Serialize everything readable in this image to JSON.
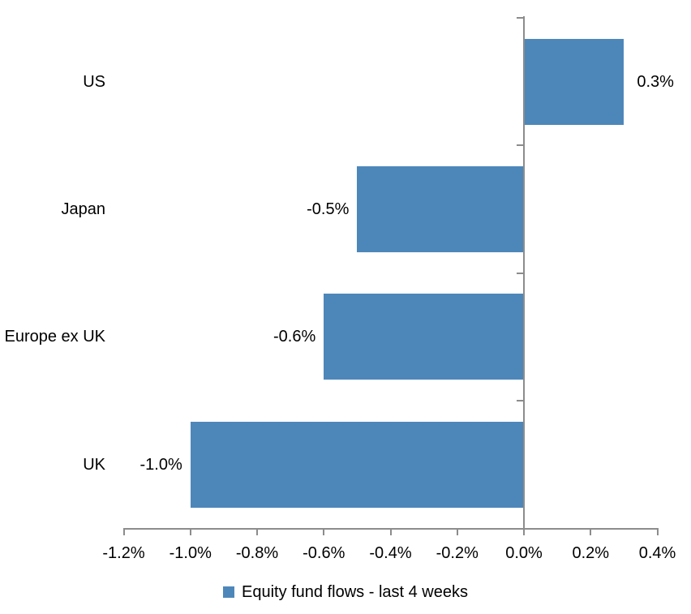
{
  "chart_data": {
    "type": "bar",
    "orientation": "horizontal",
    "title": "",
    "categories": [
      "US",
      "Japan",
      "Europe ex UK",
      "UK"
    ],
    "values": [
      0.3,
      -0.5,
      -0.6,
      -1.0
    ],
    "data_labels": [
      "0.3%",
      "-0.5%",
      "-0.6%",
      "-1.0%"
    ],
    "x_axis": {
      "min": -1.2,
      "max": 0.4,
      "step": 0.2,
      "unit": "%",
      "tick_labels": [
        "-1.2%",
        "-1.0%",
        "-0.8%",
        "-0.6%",
        "-0.4%",
        "-0.2%",
        "0.0%",
        "0.2%",
        "0.4%"
      ]
    },
    "grid": false,
    "legend": {
      "position": "bottom",
      "label": "Equity fund flows - last 4 weeks"
    },
    "colors": {
      "bar": "#4D87BA",
      "axis": "#8C8C8C",
      "text": "#000000",
      "background": "#FFFFFF"
    }
  }
}
